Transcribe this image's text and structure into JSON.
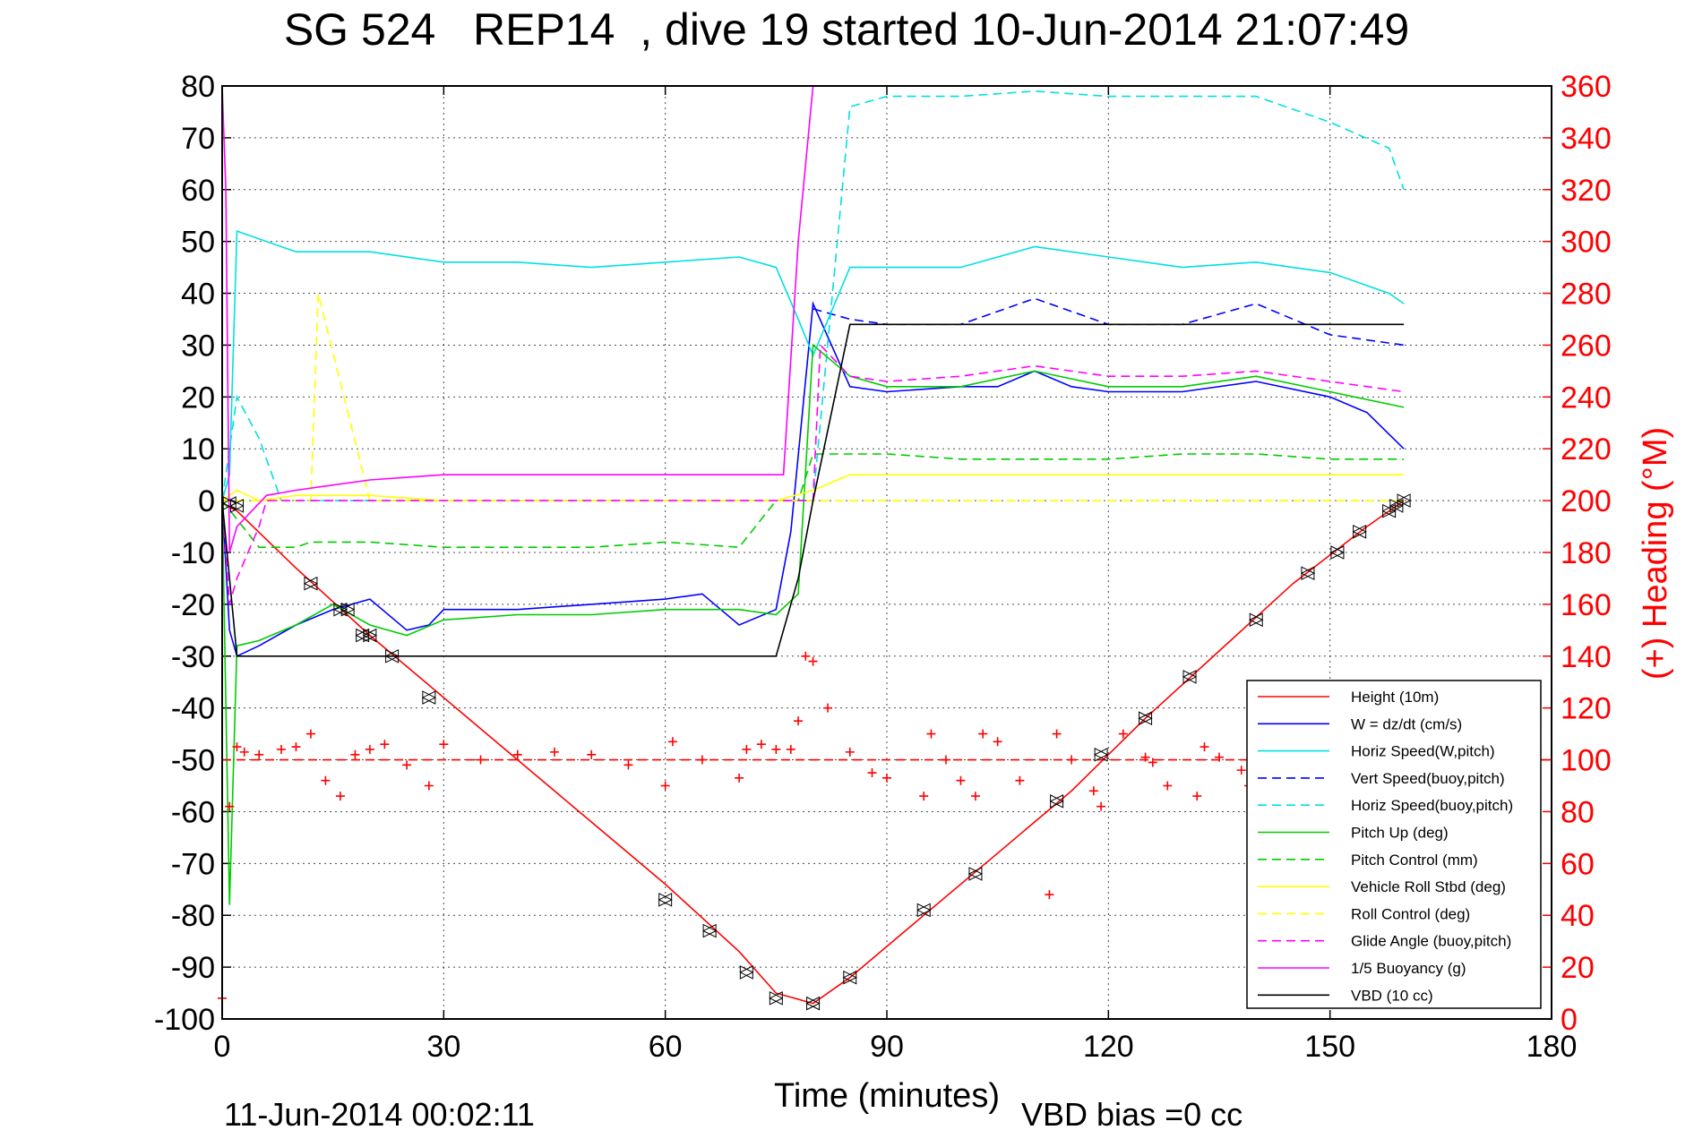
{
  "chart_data": {
    "type": "line",
    "title": "SG 524   REP14  , dive 19 started 10-Jun-2014 21:07:49",
    "xlabel": "Time (minutes)",
    "ylabel": "",
    "ylabel_right": "(+) Heading (°M)",
    "footer_left": "11-Jun-2014 00:02:11",
    "footer_right": "VBD bias =0 cc",
    "xlim": [
      0,
      180
    ],
    "ylim": [
      -100,
      80
    ],
    "ylim_right": [
      0,
      360
    ],
    "xticks": [
      "0",
      "30",
      "60",
      "90",
      "120",
      "150",
      "180"
    ],
    "yticks": [
      "80",
      "70",
      "60",
      "50",
      "40",
      "30",
      "20",
      "10",
      "0",
      "-10",
      "-20",
      "-30",
      "-40",
      "-50",
      "-60",
      "-70",
      "-80",
      "-90",
      "-100"
    ],
    "yticks_right": [
      "360",
      "340",
      "320",
      "300",
      "280",
      "260",
      "240",
      "220",
      "200",
      "180",
      "160",
      "140",
      "120",
      "100",
      "80",
      "60",
      "40",
      "20",
      "0"
    ],
    "grid": true,
    "legend_position": "bottom-right",
    "colors": {
      "right_axis": "#ff0000",
      "legend_border": "#000000"
    },
    "series": [
      {
        "name": "Height (10m)",
        "color": "#ff0000",
        "style": "solid",
        "x": [
          0,
          2,
          10,
          20,
          30,
          40,
          50,
          60,
          70,
          75,
          80,
          85,
          95,
          105,
          115,
          125,
          135,
          145,
          155,
          160
        ],
        "y": [
          -0.5,
          -2,
          -13,
          -26,
          -38,
          -50,
          -62,
          -74,
          -87,
          -95,
          -97,
          -92,
          -80,
          -68,
          -56,
          -42,
          -29,
          -16,
          -5,
          0
        ]
      },
      {
        "name": "W = dz/dt (cm/s)",
        "color": "#0000ff",
        "style": "solid",
        "x": [
          0,
          1,
          2,
          5,
          10,
          15,
          20,
          25,
          28,
          30,
          40,
          50,
          60,
          65,
          70,
          75,
          77,
          80,
          85,
          90,
          100,
          105,
          110,
          115,
          120,
          130,
          140,
          150,
          155,
          160
        ],
        "y": [
          0,
          -25,
          -30,
          -28,
          -24,
          -21,
          -19,
          -25,
          -24,
          -21,
          -21,
          -20,
          -19,
          -18,
          -24,
          -21,
          -6,
          38,
          22,
          21,
          22,
          22,
          25,
          22,
          21,
          21,
          23,
          20,
          17,
          10
        ]
      },
      {
        "name": "Horiz Speed(W,pitch)",
        "color": "#00e0e0",
        "style": "solid",
        "x": [
          0,
          1,
          2,
          10,
          20,
          30,
          40,
          50,
          60,
          70,
          75,
          78,
          80,
          85,
          90,
          100,
          110,
          120,
          130,
          140,
          150,
          158,
          160
        ],
        "y": [
          0,
          5,
          52,
          48,
          48,
          46,
          46,
          45,
          46,
          47,
          45,
          35,
          28,
          45,
          45,
          45,
          49,
          47,
          45,
          46,
          44,
          40,
          38
        ]
      },
      {
        "name": "Vert Speed(buoy,pitch)",
        "color": "#0000ff",
        "style": "dashed",
        "x": [
          80,
          85,
          90,
          100,
          110,
          120,
          130,
          140,
          150,
          160
        ],
        "y": [
          37,
          35,
          34,
          34,
          39,
          34,
          34,
          38,
          32,
          30
        ]
      },
      {
        "name": "Horiz Speed(buoy,pitch)",
        "color": "#00e0e0",
        "style": "dashed",
        "x": [
          0,
          2,
          5,
          8,
          80,
          85,
          90,
          100,
          110,
          120,
          130,
          140,
          150,
          158,
          160
        ],
        "y": [
          0,
          20,
          12,
          0,
          0,
          76,
          78,
          78,
          79,
          78,
          78,
          78,
          73,
          68,
          60
        ]
      },
      {
        "name": "Pitch Up (deg)",
        "color": "#00cc00",
        "style": "solid",
        "x": [
          0,
          1,
          2,
          5,
          10,
          15,
          20,
          25,
          30,
          40,
          50,
          60,
          70,
          75,
          78,
          80,
          85,
          90,
          100,
          110,
          120,
          130,
          140,
          150,
          160
        ],
        "y": [
          0,
          -78,
          -28,
          -27,
          -24,
          -20,
          -24,
          -26,
          -23,
          -22,
          -22,
          -21,
          -21,
          -22,
          -18,
          30,
          24,
          22,
          22,
          25,
          22,
          22,
          24,
          21,
          18
        ]
      },
      {
        "name": "Pitch Control (mm)",
        "color": "#00cc00",
        "style": "dashed",
        "x": [
          0,
          5,
          10,
          12,
          20,
          30,
          40,
          50,
          60,
          70,
          75,
          78,
          80,
          85,
          90,
          100,
          110,
          120,
          130,
          140,
          150,
          160
        ],
        "y": [
          0,
          -9,
          -9,
          -8,
          -8,
          -9,
          -9,
          -9,
          -8,
          -9,
          0,
          0,
          9,
          9,
          9,
          8,
          8,
          8,
          9,
          9,
          8,
          8
        ]
      },
      {
        "name": "Vehicle Roll Stbd (deg)",
        "color": "#ffff00",
        "style": "solid",
        "x": [
          0,
          2,
          5,
          10,
          20,
          30,
          40,
          50,
          60,
          70,
          75,
          80,
          85,
          90,
          100,
          110,
          120,
          130,
          140,
          150,
          160
        ],
        "y": [
          0,
          2,
          0,
          1,
          1,
          0,
          0,
          0,
          0,
          0,
          0,
          2,
          5,
          5,
          5,
          5,
          5,
          5,
          5,
          5,
          5
        ]
      },
      {
        "name": "Roll Control (deg)",
        "color": "#ffff00",
        "style": "dashed",
        "x": [
          0,
          10,
          12,
          13,
          20,
          30,
          40,
          50,
          60,
          70,
          80,
          85,
          90,
          100,
          110,
          120,
          130,
          140,
          150,
          160
        ],
        "y": [
          0,
          0,
          0,
          40,
          0,
          0,
          0,
          0,
          0,
          0,
          0,
          0,
          0,
          0,
          0,
          0,
          0,
          0,
          0,
          0
        ]
      },
      {
        "name": "Glide Angle (buoy,pitch)",
        "color": "#ff00ff",
        "style": "dashed",
        "x": [
          0,
          1,
          2,
          5,
          6,
          8,
          80,
          81,
          85,
          90,
          100,
          110,
          120,
          130,
          140,
          150,
          160
        ],
        "y": [
          0,
          -20,
          -15,
          -5,
          0,
          0,
          0,
          30,
          24,
          23,
          24,
          26,
          24,
          24,
          25,
          23,
          21
        ]
      },
      {
        "name": "1/5 Buoyancy (g)",
        "color": "#ff00ff",
        "style": "solid",
        "x": [
          0,
          0.5,
          1,
          2,
          4,
          6,
          10,
          15,
          20,
          25,
          30,
          40,
          50,
          60,
          70,
          75,
          76,
          78,
          80
        ],
        "y": [
          80,
          60,
          -10,
          -5,
          -2,
          1,
          2,
          3,
          4,
          4.5,
          5,
          5,
          5,
          5,
          5,
          5,
          5,
          50,
          80
        ]
      },
      {
        "name": "VBD (10 cc)",
        "color": "#000000",
        "style": "solid",
        "x": [
          0,
          1,
          2,
          5,
          10,
          20,
          30,
          40,
          50,
          60,
          70,
          75,
          78,
          80,
          85,
          90,
          100,
          120,
          140,
          160
        ],
        "y": [
          0,
          -15,
          -30,
          -30,
          -30,
          -30,
          -30,
          -30,
          -30,
          -30,
          -30,
          -30,
          -15,
          0,
          34,
          34,
          34,
          34,
          34,
          34
        ]
      },
      {
        "name": "",
        "color": "#ff0000",
        "style": "plus",
        "axis": "right",
        "x": [
          0,
          1,
          2,
          3,
          5,
          8,
          10,
          12,
          14,
          16,
          18,
          20,
          22,
          25,
          28,
          30,
          35,
          40,
          45,
          50,
          55,
          60,
          61,
          65,
          70,
          71,
          73,
          75,
          77,
          78,
          79,
          80,
          82,
          85,
          88,
          90,
          95,
          96,
          98,
          100,
          102,
          103,
          105,
          108,
          112,
          113,
          115,
          118,
          119,
          122,
          125,
          126,
          128,
          132,
          133,
          135,
          138,
          139
        ],
        "y": [
          8,
          82,
          105,
          103,
          102,
          104,
          105,
          110,
          92,
          86,
          102,
          104,
          106,
          98,
          90,
          106,
          100,
          102,
          103,
          102,
          98,
          90,
          107,
          100,
          93,
          104,
          106,
          104,
          104,
          115,
          140,
          138,
          120,
          103,
          95,
          93,
          86,
          110,
          100,
          92,
          86,
          110,
          107,
          92,
          48,
          110,
          100,
          88,
          82,
          110,
          101,
          99,
          90,
          86,
          105,
          101,
          96,
          90
        ]
      },
      {
        "name": "",
        "color": "#ff0000",
        "style": "dashed",
        "axis": "right",
        "x": [
          0,
          180
        ],
        "y": [
          100,
          100
        ]
      }
    ],
    "dive_markers": {
      "color": "#000000",
      "x": [
        1,
        2,
        12,
        16,
        17,
        19,
        20,
        23,
        28,
        60,
        66,
        71,
        75,
        80,
        85,
        95,
        102,
        113,
        119,
        125,
        131,
        140,
        147,
        151,
        154,
        158,
        159,
        160
      ],
      "y": [
        -0.5,
        -1,
        -16,
        -21,
        -21,
        -26,
        -26,
        -30,
        -38,
        -77,
        -83,
        -91,
        -96,
        -97,
        -92,
        -79,
        -72,
        -58,
        -49,
        -42,
        -34,
        -23,
        -14,
        -10,
        -6,
        -2,
        -1,
        0
      ]
    }
  }
}
